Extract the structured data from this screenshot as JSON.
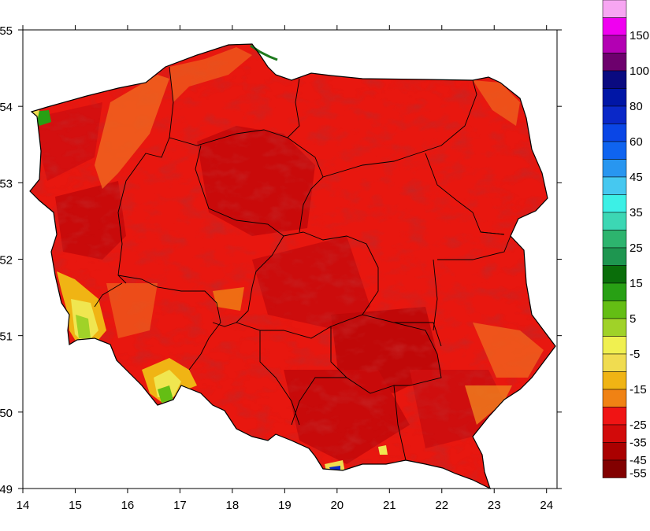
{
  "map": {
    "x_ticks": [
      "14",
      "15",
      "16",
      "17",
      "18",
      "19",
      "20",
      "21",
      "22",
      "23",
      "24"
    ],
    "y_ticks": [
      "55",
      "54",
      "53",
      "52",
      "51",
      "50",
      "49"
    ],
    "x_range": [
      14,
      24.2
    ],
    "y_range": [
      49,
      55
    ]
  },
  "colorbar": {
    "labels": [
      "150",
      "100",
      "80",
      "60",
      "45",
      "35",
      "25",
      "15",
      "5",
      "-5",
      "-15",
      "-25",
      "-35",
      "-45",
      "-55"
    ],
    "colors": [
      "#f7a6f2",
      "#f000f0",
      "#b300b3",
      "#6d006d",
      "#0a0a80",
      "#0016a6",
      "#0a28c8",
      "#0a46e6",
      "#0f64f0",
      "#2896f0",
      "#46c8f0",
      "#3cf0e6",
      "#3cd7b4",
      "#2db46e",
      "#1e9650",
      "#0a6e0a",
      "#28a014",
      "#64be14",
      "#a0d228",
      "#f0f050",
      "#f0dc50",
      "#f0b414",
      "#f08214",
      "#f01414",
      "#d20a0a",
      "#aa0000",
      "#820000"
    ]
  }
}
